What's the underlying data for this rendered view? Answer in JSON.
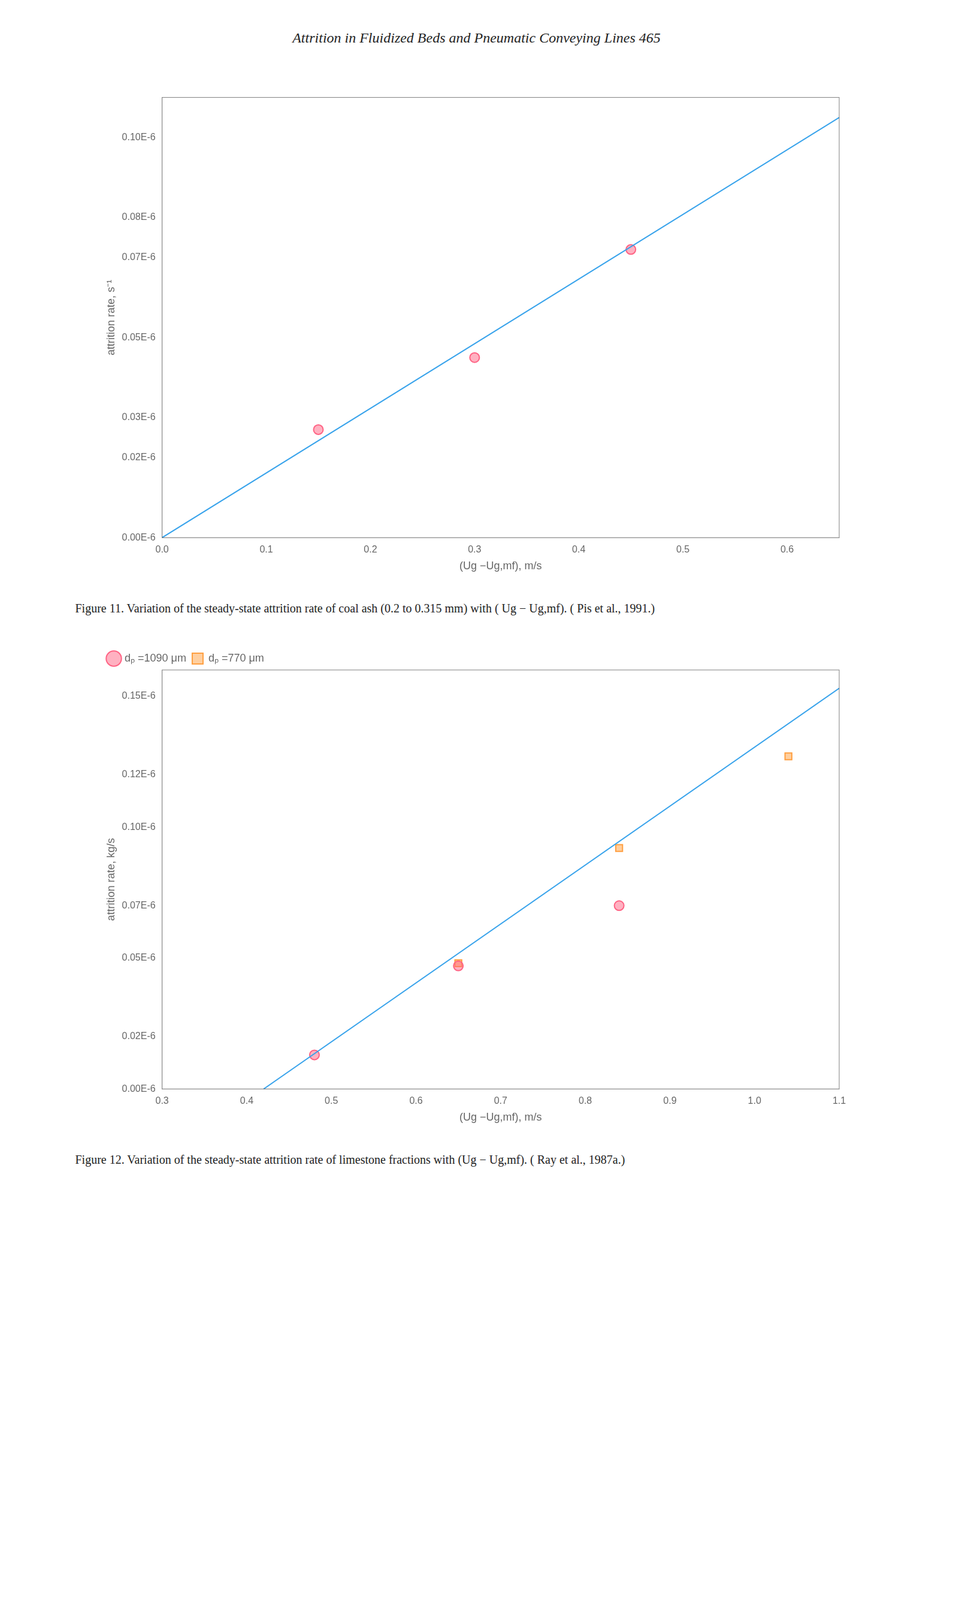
{
  "title": "Attrition in Fluidized Beds and Pneumatic Conveying Lines   465",
  "chart_data": [
    {
      "type": "scatter",
      "x_label": "(Ug −Ug,mf), m/s",
      "y_label": "attrition rate, s⁻¹",
      "annotations": [
        "Figure 11.  Variation of the steady-state attrition rate of coal ash (0.2 to 0.315 mm) with ( Ug − Ug,mf). ( Pis et al., 1991.)"
      ],
      "xlim": [
        0.0,
        0.65
      ],
      "ylim": [
        0.0,
        1.1e-07
      ],
      "xticks": [
        {
          "value": 0.0,
          "label": "0.0"
        },
        0.1,
        0.2,
        0.3,
        0.4,
        0.5,
        0.6
      ],
      "yticks": [
        {
          "value": 0.0,
          "label": "0.00E-6"
        },
        {
          "value": 2e-08,
          "label": "0.02E-6"
        },
        {
          "value": 3e-08,
          "label": "0.03E-6"
        },
        {
          "value": 5e-08,
          "label": "0.05E-6"
        },
        {
          "value": 7e-08,
          "label": "0.07E-6"
        },
        {
          "value": 8e-08,
          "label": "0.08E-6"
        },
        {
          "value": 1e-07,
          "label": "0.10E-6"
        }
      ],
      "grid": false,
      "series": [
        {
          "type": "line",
          "line_style": "solid",
          "x": [
            0.0,
            0.65
          ],
          "values": [
            0.0,
            1.05e-07
          ]
        },
        {
          "type": "scatter",
          "marker": "circle",
          "x": [
            0.15,
            0.3,
            0.45
          ],
          "values": [
            2.7e-08,
            4.5e-08,
            7.2e-08
          ]
        }
      ]
    },
    {
      "type": "scatter",
      "x_label": "(Ug −Ug,mf), m/s",
      "y_label": "attrition rate, kg/s",
      "annotations": [
        "Figure 12.  Variation of the steady-state attrition rate of limestone fractions with (Ug − Ug,mf). ( Ray et al., 1987a.)"
      ],
      "xlim": [
        0.3,
        1.1
      ],
      "ylim": [
        0.0,
        1.6e-07
      ],
      "xticks": [
        0.3,
        0.4,
        0.5,
        0.6,
        0.7,
        0.8,
        0.9,
        {
          "value": 1.0,
          "label": "1.0"
        },
        1.1
      ],
      "yticks": [
        {
          "value": 0.0,
          "label": "0.00E-6"
        },
        {
          "value": 2e-08,
          "label": "0.02E-6"
        },
        {
          "value": 5e-08,
          "label": "0.05E-6"
        },
        {
          "value": 7e-08,
          "label": "0.07E-6"
        },
        {
          "value": 1e-07,
          "label": "0.10E-6"
        },
        {
          "value": 1.2e-07,
          "label": "0.12E-6"
        },
        {
          "value": 1.5e-07,
          "label": "0.15E-6"
        }
      ],
      "grid": false,
      "legend": "upper left",
      "series": [
        {
          "type": "line",
          "line_style": "solid",
          "x": [
            0.42,
            1.1
          ],
          "values": [
            0.0,
            1.53e-07
          ]
        },
        {
          "type": "scatter",
          "name": "dₚ =1090 μm",
          "marker": "circle",
          "x": [
            0.48,
            0.65,
            0.84
          ],
          "values": [
            1.3e-08,
            4.7e-08,
            7e-08
          ]
        },
        {
          "type": "scatter",
          "name": "dₚ =770 μm",
          "marker": "square",
          "x": [
            0.65,
            0.84,
            1.04
          ],
          "values": [
            4.8e-08,
            9.2e-08,
            1.27e-07
          ]
        }
      ]
    }
  ]
}
